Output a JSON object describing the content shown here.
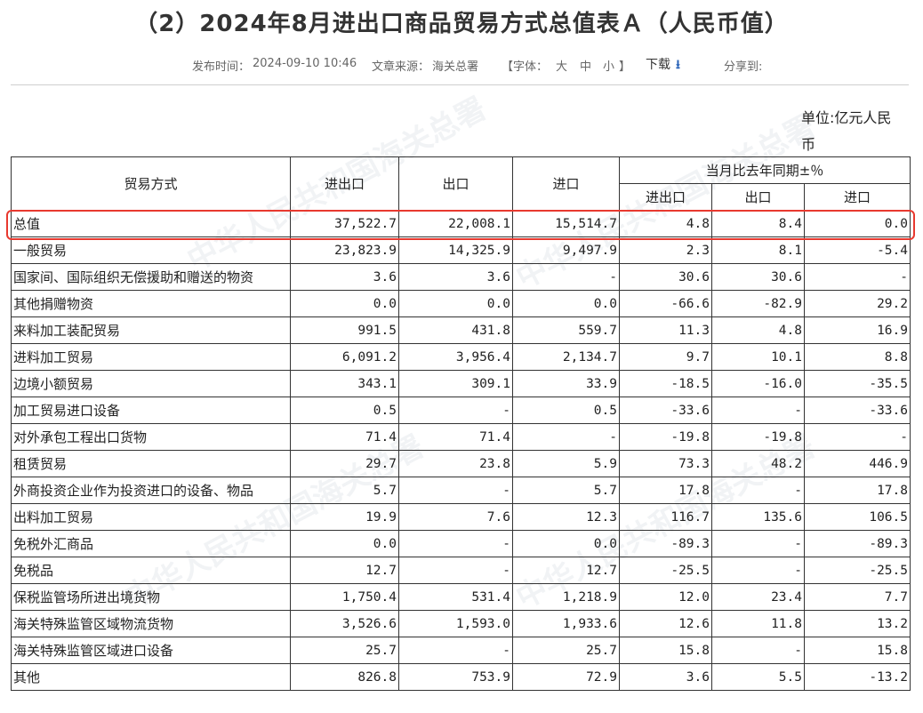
{
  "page": {
    "title": "（2）2024年8月进出口商品贸易方式总值表Ａ（人民币值）",
    "publish_label": "发布时间：",
    "publish_time": "2024-09-10 10:46",
    "source_label": "文章来源：",
    "source": "海关总署",
    "font_label_open": "【字体：",
    "font_large": "大",
    "font_medium": "中",
    "font_small": "小",
    "font_label_close": "】",
    "download_label": "下载",
    "download_icon": "download-arrow-icon",
    "share_label": "分享到:",
    "unit_line1": "单位:亿元人民",
    "unit_line2": "币",
    "watermark": "中华人民共和国海关总署"
  },
  "table": {
    "headers": {
      "trade_mode": "贸易方式",
      "total": "进出口",
      "export": "出口",
      "import": "进口",
      "yoy_group": "当月比去年同期±％",
      "yoy_total": "进出口",
      "yoy_export": "出口",
      "yoy_import": "进口"
    },
    "rows": [
      {
        "name": "总值",
        "total": "37,522.7",
        "export": "22,008.1",
        "import": "15,514.7",
        "yoy_total": "4.8",
        "yoy_export": "8.4",
        "yoy_import": "0.0"
      },
      {
        "name": "一般贸易",
        "total": "23,823.9",
        "export": "14,325.9",
        "import": "9,497.9",
        "yoy_total": "2.3",
        "yoy_export": "8.1",
        "yoy_import": "-5.4"
      },
      {
        "name": "国家间、国际组织无偿援助和赠送的物资",
        "total": "3.6",
        "export": "3.6",
        "import": "-",
        "yoy_total": "30.6",
        "yoy_export": "30.6",
        "yoy_import": "-"
      },
      {
        "name": "其他捐赠物资",
        "total": "0.0",
        "export": "0.0",
        "import": "0.0",
        "yoy_total": "-66.6",
        "yoy_export": "-82.9",
        "yoy_import": "29.2"
      },
      {
        "name": "来料加工装配贸易",
        "total": "991.5",
        "export": "431.8",
        "import": "559.7",
        "yoy_total": "11.3",
        "yoy_export": "4.8",
        "yoy_import": "16.9"
      },
      {
        "name": "进料加工贸易",
        "total": "6,091.2",
        "export": "3,956.4",
        "import": "2,134.7",
        "yoy_total": "9.7",
        "yoy_export": "10.1",
        "yoy_import": "8.8"
      },
      {
        "name": "边境小额贸易",
        "total": "343.1",
        "export": "309.1",
        "import": "33.9",
        "yoy_total": "-18.5",
        "yoy_export": "-16.0",
        "yoy_import": "-35.5"
      },
      {
        "name": "加工贸易进口设备",
        "total": "0.5",
        "export": "-",
        "import": "0.5",
        "yoy_total": "-33.6",
        "yoy_export": "-",
        "yoy_import": "-33.6"
      },
      {
        "name": "对外承包工程出口货物",
        "total": "71.4",
        "export": "71.4",
        "import": "-",
        "yoy_total": "-19.8",
        "yoy_export": "-19.8",
        "yoy_import": "-"
      },
      {
        "name": "租赁贸易",
        "total": "29.7",
        "export": "23.8",
        "import": "5.9",
        "yoy_total": "73.3",
        "yoy_export": "48.2",
        "yoy_import": "446.9"
      },
      {
        "name": "外商投资企业作为投资进口的设备、物品",
        "total": "5.7",
        "export": "-",
        "import": "5.7",
        "yoy_total": "17.8",
        "yoy_export": "-",
        "yoy_import": "17.8"
      },
      {
        "name": "出料加工贸易",
        "total": "19.9",
        "export": "7.6",
        "import": "12.3",
        "yoy_total": "116.7",
        "yoy_export": "135.6",
        "yoy_import": "106.5"
      },
      {
        "name": "免税外汇商品",
        "total": "0.0",
        "export": "-",
        "import": "0.0",
        "yoy_total": "-89.3",
        "yoy_export": "-",
        "yoy_import": "-89.3"
      },
      {
        "name": "免税品",
        "total": "12.7",
        "export": "-",
        "import": "12.7",
        "yoy_total": "-25.5",
        "yoy_export": "-",
        "yoy_import": "-25.5"
      },
      {
        "name": "保税监管场所进出境货物",
        "total": "1,750.4",
        "export": "531.4",
        "import": "1,218.9",
        "yoy_total": "12.0",
        "yoy_export": "23.4",
        "yoy_import": "7.7"
      },
      {
        "name": "海关特殊监管区域物流货物",
        "total": "3,526.6",
        "export": "1,593.0",
        "import": "1,933.6",
        "yoy_total": "12.6",
        "yoy_export": "11.8",
        "yoy_import": "13.2"
      },
      {
        "name": "海关特殊监管区域进口设备",
        "total": "25.7",
        "export": "-",
        "import": "25.7",
        "yoy_total": "15.8",
        "yoy_export": "-",
        "yoy_import": "15.8"
      },
      {
        "name": "其他",
        "total": "826.8",
        "export": "753.9",
        "import": "72.9",
        "yoy_total": "3.6",
        "yoy_export": "5.5",
        "yoy_import": "-13.2"
      }
    ]
  },
  "colors": {
    "highlight_border": "#e8392f",
    "download_icon": "#2a63b8"
  }
}
